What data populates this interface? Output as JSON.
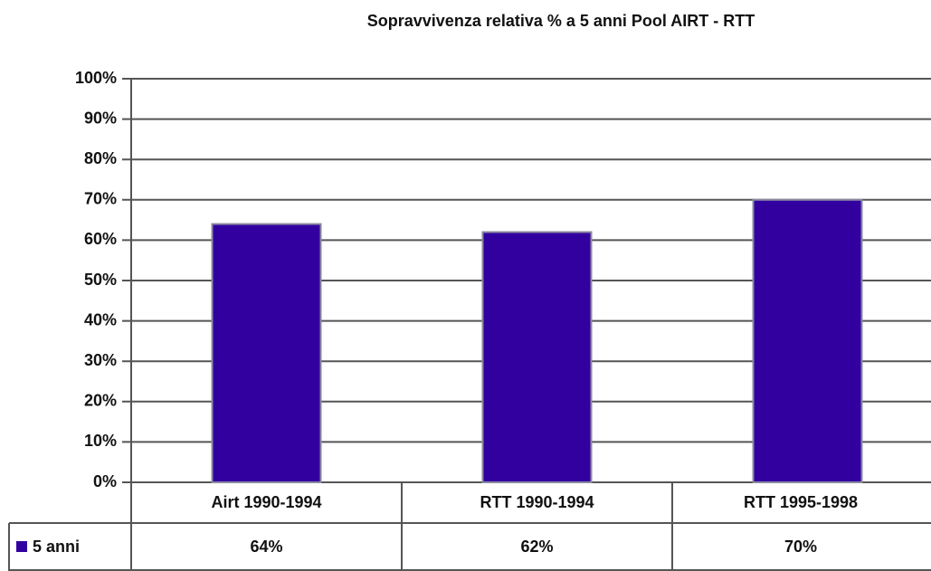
{
  "chart_data": {
    "type": "bar",
    "title": "Sopravvivenza relativa % a 5 anni Pool AIRT - RTT",
    "categories": [
      "Airt 1990-1994",
      "RTT 1990-1994",
      "RTT 1995-1998"
    ],
    "series": [
      {
        "name": "5 anni",
        "color": "#3300a0",
        "values": [
          64,
          62,
          70
        ],
        "value_labels": [
          "64%",
          "62%",
          "70%"
        ]
      }
    ],
    "ylim": [
      0,
      100
    ],
    "yticks": [
      {
        "value": 0,
        "label": "0%"
      },
      {
        "value": 10,
        "label": "10%"
      },
      {
        "value": 20,
        "label": "20%"
      },
      {
        "value": 30,
        "label": "30%"
      },
      {
        "value": 40,
        "label": "40%"
      },
      {
        "value": 50,
        "label": "50%"
      },
      {
        "value": 60,
        "label": "60%"
      },
      {
        "value": 70,
        "label": "70%"
      },
      {
        "value": 80,
        "label": "80%"
      },
      {
        "value": 90,
        "label": "90%"
      },
      {
        "value": 100,
        "label": "100%"
      }
    ],
    "grid": true
  }
}
